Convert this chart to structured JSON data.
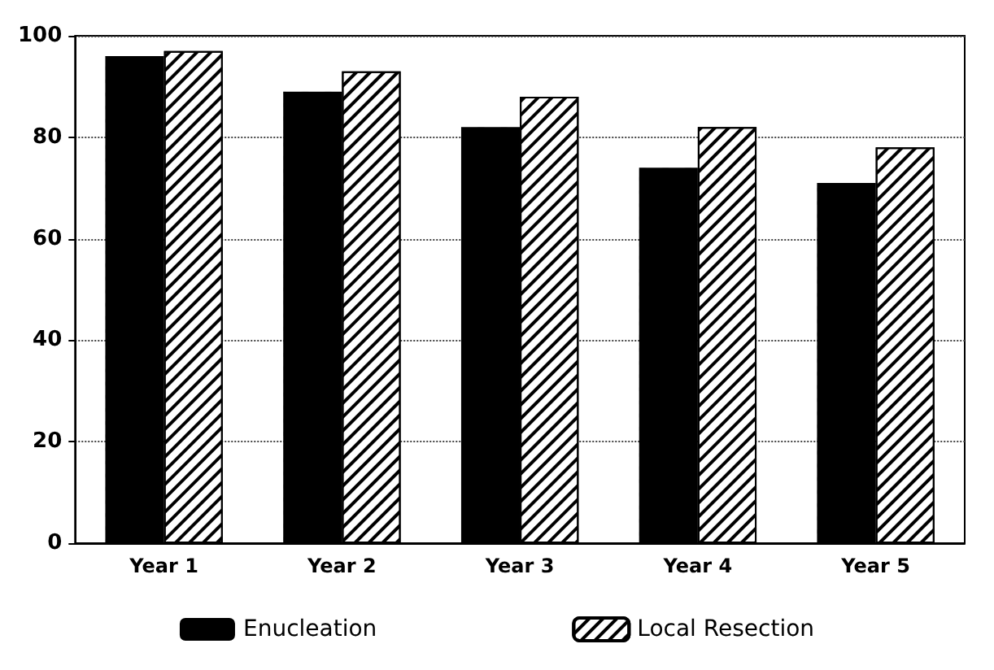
{
  "chart_data": {
    "type": "bar",
    "categories": [
      "Year 1",
      "Year 2",
      "Year 3",
      "Year 4",
      "Year 5"
    ],
    "series": [
      {
        "name": "Enucleation",
        "color": "#000000",
        "values": [
          96,
          89,
          82,
          74,
          71
        ]
      },
      {
        "name": "Local Resection",
        "color": "#ffffff",
        "values": [
          97,
          93,
          88,
          82,
          78
        ]
      }
    ],
    "ylim": [
      0,
      100
    ],
    "yticks": [
      0,
      20,
      40,
      60,
      80,
      100
    ],
    "grid": "y",
    "legend": "bottom"
  }
}
